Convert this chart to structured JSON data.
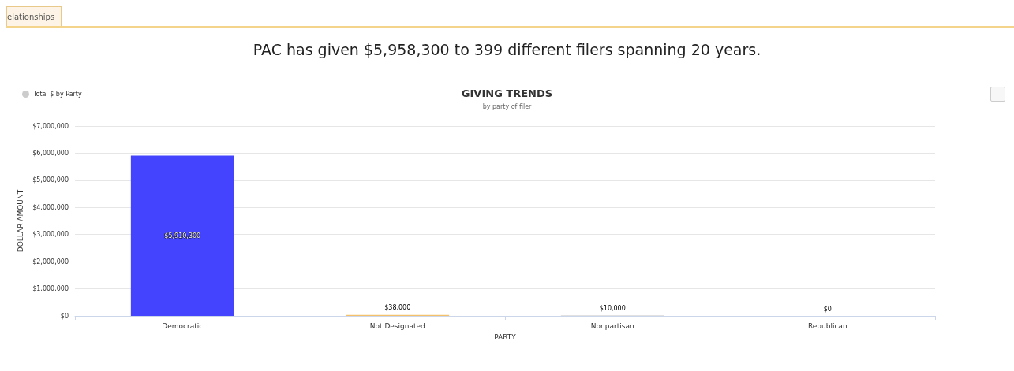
{
  "chart_data": {
    "type": "bar",
    "title": "GIVING TRENDS",
    "subtitle": "by party of filer",
    "xlabel": "PARTY",
    "ylabel": "DOLLAR AMOUNT",
    "annotations": [
      "elationships",
      "PAC has given $5,958,300 to 399 different filers spanning 20 years."
    ],
    "categories": [
      "Democratic",
      "Not Designated",
      "Nonpartisan",
      "Republican"
    ],
    "series": [
      {
        "name": "Total $ by Party",
        "color": "#cccccc",
        "colors": [
          "#4444ff",
          "#f5c26b",
          "#888888",
          "#d9534f"
        ],
        "values": [
          5910300,
          38000,
          10000,
          0
        ],
        "value_labels": [
          "$5,910,300",
          "$38,000",
          "$10,000",
          "$0"
        ]
      }
    ],
    "ylim": [
      0,
      7000000
    ],
    "yticks": [
      {
        "value": 0,
        "label": "$0"
      },
      {
        "value": 1000000,
        "label": "$1,000,000"
      },
      {
        "value": 2000000,
        "label": "$2,000,000"
      },
      {
        "value": 3000000,
        "label": "$3,000,000"
      },
      {
        "value": 4000000,
        "label": "$4,000,000"
      },
      {
        "value": 5000000,
        "label": "$5,000,000"
      },
      {
        "value": 6000000,
        "label": "$6,000,000"
      },
      {
        "value": 7000000,
        "label": "$7,000,000"
      }
    ],
    "grid": "y",
    "legend": "top left"
  }
}
